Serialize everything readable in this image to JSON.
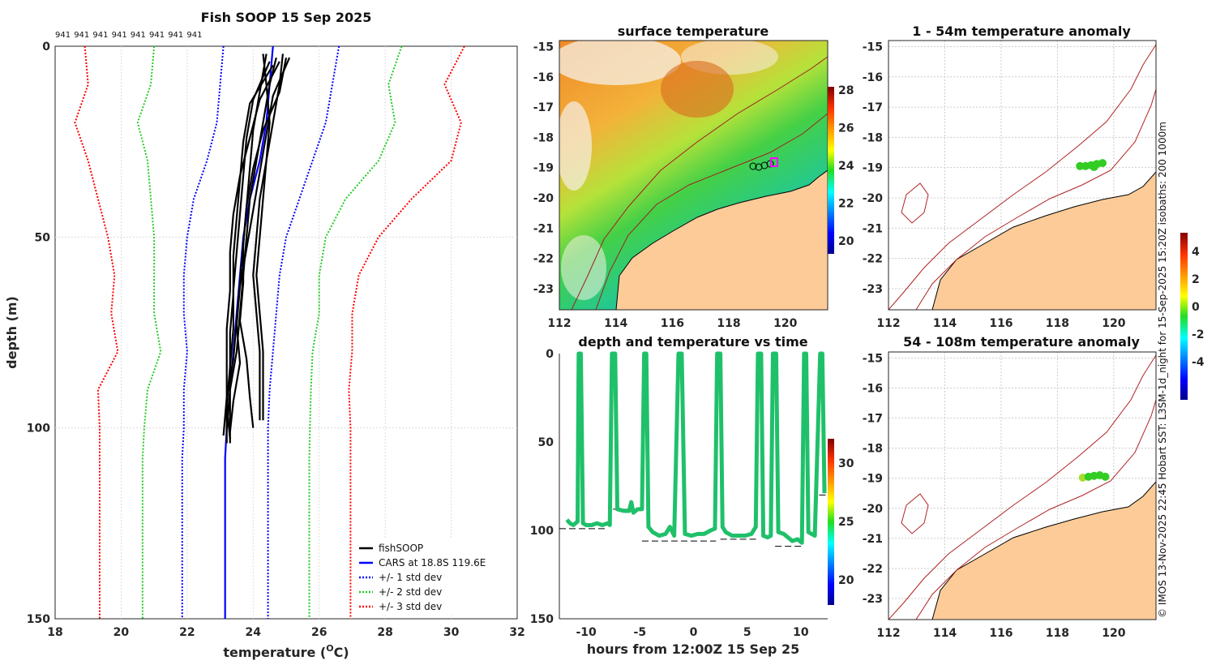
{
  "colors": {
    "fish": "#000000",
    "cars": "#0000ff",
    "std1": "#0000ff",
    "std2": "#22cc22",
    "std3": "#ff0000",
    "land": "#fccb98",
    "coast_line": "#b22222"
  },
  "chart_data": [
    {
      "type": "line",
      "id": "profile",
      "title": "Fish SOOP 15 Sep 2025",
      "xlabel": "temperature (",
      "xlabel_sup": "O",
      "xlabel_tail": "C)",
      "ylabel": "depth (m)",
      "xlim": [
        18,
        32
      ],
      "ylim": [
        0,
        150
      ],
      "xticks": [
        "18",
        "20",
        "22",
        "24",
        "26",
        "28",
        "30",
        "32"
      ],
      "yticks": [
        "0",
        "50",
        "100",
        "150"
      ],
      "top_labels": [
        "941",
        "941",
        "941",
        "941",
        "941",
        "941",
        "941",
        "941"
      ],
      "legend": [
        "fishSOOP",
        "CARS at 18.8S 119.6E",
        "+/- 1 std dev",
        "+/- 2 std dev",
        "+/- 3 std dev"
      ],
      "series": [
        {
          "name": "CARS",
          "depth": [
            0,
            10,
            20,
            30,
            40,
            50,
            60,
            70,
            80,
            90,
            100,
            108,
            150
          ],
          "temp": [
            24.6,
            24.5,
            24.4,
            24.2,
            23.9,
            23.7,
            23.6,
            23.5,
            23.4,
            23.3,
            23.2,
            23.15,
            23.15
          ]
        },
        {
          "name": "m1",
          "depth": [
            0,
            10,
            20,
            30,
            40,
            50,
            60,
            70,
            80,
            90,
            100,
            108,
            150
          ],
          "temp": [
            23.1,
            23.0,
            22.9,
            22.6,
            22.2,
            22.0,
            21.9,
            21.9,
            22.0,
            21.9,
            21.9,
            21.85,
            21.85
          ]
        },
        {
          "name": "p1",
          "depth": [
            0,
            10,
            20,
            30,
            40,
            50,
            60,
            70,
            80,
            90,
            100,
            108,
            150
          ],
          "temp": [
            26.6,
            26.4,
            26.2,
            25.8,
            25.4,
            25.0,
            24.8,
            24.7,
            24.6,
            24.5,
            24.45,
            24.45,
            24.45
          ]
        },
        {
          "name": "m2",
          "depth": [
            0,
            10,
            20,
            30,
            40,
            50,
            60,
            70,
            80,
            90,
            100,
            108,
            150
          ],
          "temp": [
            21.0,
            20.9,
            20.5,
            20.8,
            20.9,
            21.0,
            21.0,
            21.0,
            21.2,
            20.8,
            20.7,
            20.65,
            20.65
          ]
        },
        {
          "name": "p2",
          "depth": [
            0,
            10,
            20,
            30,
            40,
            50,
            60,
            70,
            80,
            90,
            100,
            108,
            150
          ],
          "temp": [
            28.5,
            28.1,
            28.3,
            27.8,
            26.8,
            26.2,
            26.0,
            26.0,
            25.8,
            25.75,
            25.72,
            25.7,
            25.7
          ]
        },
        {
          "name": "m3",
          "depth": [
            0,
            10,
            20,
            30,
            40,
            50,
            60,
            70,
            80,
            90,
            100,
            108,
            150
          ],
          "temp": [
            18.9,
            19.0,
            18.6,
            19.0,
            19.3,
            19.6,
            19.8,
            19.7,
            19.9,
            19.3,
            19.35,
            19.35,
            19.35
          ]
        },
        {
          "name": "p3",
          "depth": [
            0,
            10,
            20,
            30,
            40,
            50,
            60,
            70,
            80,
            90,
            100,
            108,
            150
          ],
          "temp": [
            30.4,
            29.8,
            30.3,
            30.0,
            28.8,
            27.8,
            27.2,
            27.0,
            27.0,
            26.9,
            26.95,
            26.95,
            26.95
          ]
        }
      ],
      "fish": [
        {
          "depth": [
            2,
            10,
            20,
            30,
            40,
            50,
            60,
            70,
            80,
            90,
            98
          ],
          "temp": [
            24.3,
            24.4,
            24.5,
            24.4,
            24.3,
            24.2,
            24.1,
            24.2,
            24.3,
            24.3,
            24.3
          ]
        },
        {
          "depth": [
            2,
            10,
            20,
            30,
            40,
            50,
            60,
            70,
            80,
            90,
            98
          ],
          "temp": [
            24.9,
            24.8,
            24.6,
            24.4,
            24.2,
            24.1,
            24.0,
            24.1,
            24.2,
            24.2,
            24.2
          ]
        },
        {
          "depth": [
            3,
            10,
            20,
            30,
            40,
            50,
            60,
            70,
            80,
            90,
            100
          ],
          "temp": [
            24.7,
            24.5,
            24.3,
            24.1,
            23.9,
            23.8,
            23.7,
            23.6,
            23.5,
            23.3,
            23.2
          ]
        },
        {
          "depth": [
            3,
            12,
            22,
            32,
            42,
            52,
            62,
            72,
            82,
            92,
            102
          ],
          "temp": [
            25.0,
            24.8,
            24.3,
            24.0,
            23.8,
            23.7,
            23.6,
            23.5,
            23.4,
            23.2,
            23.1
          ]
        },
        {
          "depth": [
            4,
            14,
            24,
            34,
            44,
            54,
            64,
            74,
            84,
            94,
            104
          ],
          "temp": [
            24.5,
            24.0,
            23.8,
            23.7,
            23.6,
            23.5,
            23.4,
            23.4,
            23.3,
            23.2,
            23.2
          ]
        },
        {
          "depth": [
            5,
            15,
            25,
            35,
            45,
            55,
            65,
            75,
            85,
            95,
            104
          ],
          "temp": [
            24.6,
            23.9,
            23.7,
            23.6,
            23.5,
            23.4,
            23.4,
            23.3,
            23.3,
            23.3,
            23.3
          ]
        },
        {
          "depth": [
            4,
            14,
            24,
            34,
            44,
            54,
            64,
            74,
            84,
            94,
            103
          ],
          "temp": [
            24.8,
            24.2,
            23.9,
            23.6,
            23.4,
            23.3,
            23.3,
            23.2,
            23.2,
            23.2,
            23.3
          ]
        },
        {
          "depth": [
            3,
            13,
            23,
            33,
            43,
            53,
            63,
            73,
            83,
            93,
            101
          ],
          "temp": [
            25.1,
            24.6,
            24.4,
            24.2,
            24.0,
            23.8,
            23.6,
            23.5,
            23.6,
            23.4,
            23.3
          ]
        },
        {
          "depth": [
            2,
            12,
            22,
            32,
            42,
            52,
            62,
            72,
            82,
            92,
            100
          ],
          "temp": [
            24.4,
            24.2,
            24.0,
            23.9,
            23.8,
            23.7,
            23.7,
            23.6,
            23.8,
            23.9,
            24.0
          ]
        }
      ]
    },
    {
      "type": "heatmap",
      "id": "sst",
      "title": "surface temperature",
      "xticks": [
        "112",
        "114",
        "116",
        "118",
        "120"
      ],
      "yticks": [
        "-15",
        "-16",
        "-17",
        "-18",
        "-19",
        "-20",
        "-21",
        "-22",
        "-23"
      ],
      "cbar_ticks": [
        "28",
        "26",
        "24",
        "22",
        "20"
      ],
      "xlim": [
        112,
        121.5
      ],
      "ylim": [
        -23.7,
        -14.8
      ]
    },
    {
      "type": "scatter",
      "id": "timeseries",
      "title": "depth and temperature vs time",
      "xlabel": "hours from 12:00Z 15 Sep 25",
      "xticks": [
        "-10",
        "-5",
        "0",
        "5",
        "10"
      ],
      "yticks": [
        "0",
        "50",
        "100",
        "150"
      ],
      "xlim": [
        -12.5,
        12.5
      ],
      "ylim": [
        0,
        150
      ],
      "cbar_ticks": [
        "30",
        "25",
        "20"
      ],
      "track": [
        [
          -11.8,
          94
        ],
        [
          -11.5,
          96
        ],
        [
          -11.2,
          97
        ],
        [
          -11.0,
          96
        ],
        [
          -10.8,
          95
        ],
        [
          -10.7,
          0
        ],
        [
          -10.5,
          0
        ],
        [
          -10.3,
          96
        ],
        [
          -10.0,
          97
        ],
        [
          -9.5,
          97
        ],
        [
          -9.0,
          96
        ],
        [
          -8.5,
          97
        ],
        [
          -8.0,
          96
        ],
        [
          -7.8,
          97
        ],
        [
          -7.6,
          0
        ],
        [
          -7.3,
          0
        ],
        [
          -7.1,
          88
        ],
        [
          -6.5,
          89
        ],
        [
          -6.0,
          89
        ],
        [
          -5.8,
          84
        ],
        [
          -5.6,
          90
        ],
        [
          -5.2,
          88
        ],
        [
          -4.8,
          88
        ],
        [
          -4.6,
          0
        ],
        [
          -4.4,
          0
        ],
        [
          -4.2,
          98
        ],
        [
          -3.8,
          101
        ],
        [
          -3.2,
          103
        ],
        [
          -2.6,
          102
        ],
        [
          -2.2,
          98
        ],
        [
          -1.8,
          103
        ],
        [
          -1.4,
          0
        ],
        [
          -1.1,
          0
        ],
        [
          -0.8,
          102
        ],
        [
          -0.2,
          103
        ],
        [
          0.4,
          102
        ],
        [
          1.0,
          102
        ],
        [
          1.6,
          100
        ],
        [
          2.0,
          99
        ],
        [
          2.2,
          0
        ],
        [
          2.5,
          0
        ],
        [
          2.7,
          98
        ],
        [
          3.0,
          101
        ],
        [
          3.6,
          103
        ],
        [
          4.2,
          103
        ],
        [
          4.8,
          103
        ],
        [
          5.4,
          102
        ],
        [
          5.8,
          98
        ],
        [
          6.0,
          0
        ],
        [
          6.3,
          0
        ],
        [
          6.5,
          103
        ],
        [
          6.9,
          104
        ],
        [
          7.2,
          103
        ],
        [
          7.4,
          0
        ],
        [
          7.7,
          0
        ],
        [
          7.9,
          101
        ],
        [
          8.4,
          102
        ],
        [
          8.8,
          104
        ],
        [
          9.2,
          106
        ],
        [
          9.7,
          105
        ],
        [
          10.1,
          107
        ],
        [
          10.3,
          0
        ],
        [
          10.5,
          0
        ],
        [
          10.7,
          101
        ],
        [
          11.3,
          103
        ],
        [
          11.8,
          0
        ],
        [
          12.0,
          0
        ],
        [
          12.2,
          79
        ]
      ],
      "bottom_segments": [
        [
          -12.5,
          -8.0,
          99
        ],
        [
          -7.5,
          -5.2,
          88
        ],
        [
          -4.8,
          2.1,
          106
        ],
        [
          2.5,
          6.0,
          105
        ],
        [
          7.6,
          10.2,
          109
        ],
        [
          11.7,
          12.5,
          80
        ]
      ]
    },
    {
      "type": "scatter",
      "id": "anom1",
      "title": "1 - 54m temperature anomaly",
      "xticks": [
        "112",
        "114",
        "116",
        "118",
        "120"
      ],
      "yticks": [
        "-15",
        "-16",
        "-17",
        "-18",
        "-19",
        "-20",
        "-21",
        "-22",
        "-23"
      ],
      "xlim": [
        112,
        121.5
      ],
      "ylim": [
        -23.7,
        -14.8
      ],
      "points": [
        [
          118.8,
          -18.95
        ],
        [
          119.0,
          -18.95
        ],
        [
          119.2,
          -18.92
        ],
        [
          119.4,
          -18.88
        ],
        [
          119.6,
          -18.85
        ],
        [
          119.3,
          -18.98
        ]
      ]
    },
    {
      "type": "scatter",
      "id": "anom2",
      "title": "54 - 108m temperature anomaly",
      "xticks": [
        "112",
        "114",
        "116",
        "118",
        "120"
      ],
      "yticks": [
        "-15",
        "-16",
        "-17",
        "-18",
        "-19",
        "-20",
        "-21",
        "-22",
        "-23"
      ],
      "xlim": [
        112,
        121.5
      ],
      "ylim": [
        -23.7,
        -14.8
      ],
      "points": [
        [
          118.9,
          -18.98
        ],
        [
          119.1,
          -18.95
        ],
        [
          119.3,
          -18.92
        ],
        [
          119.5,
          -18.9
        ],
        [
          119.7,
          -18.95
        ]
      ]
    }
  ],
  "anomaly_cbar_ticks": [
    "4",
    "2",
    "0",
    "-2",
    "-4"
  ],
  "side_credit": "© IMOS 13-Nov-2025 22:45 Hobart SST: L3SM-1d_night for 15-Sep-2025 15:20Z isobaths: 200  1000m"
}
